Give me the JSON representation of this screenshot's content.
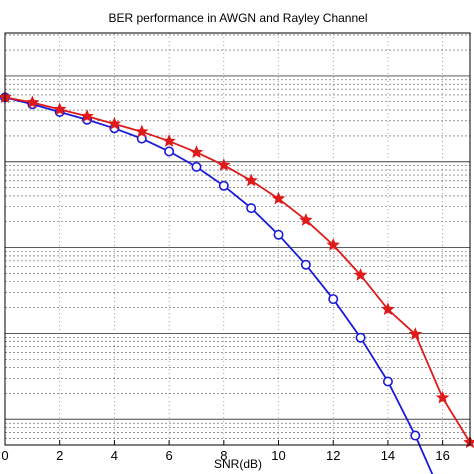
{
  "chart_data": {
    "type": "line",
    "title": "BER performance    in AWGN and Rayley Channel",
    "xlabel": "SNR(dB)",
    "ylabel": "",
    "xlim": [
      0,
      17
    ],
    "xticks": [
      0,
      2,
      4,
      6,
      8,
      10,
      12,
      14,
      16
    ],
    "yscale": "log",
    "ylim_log10": [
      -5.3,
      -0.5
    ],
    "major_decades": [
      -5,
      -4,
      -3,
      -2,
      -1
    ],
    "grid": true,
    "legend": "none",
    "series": [
      {
        "color": "#1a1adb",
        "marker": "circle",
        "x": [
          0,
          1,
          2,
          3,
          4,
          5,
          6,
          7,
          8,
          9,
          10,
          11,
          12,
          13,
          14,
          15,
          16
        ],
        "y_log10": [
          -1.25,
          -1.33,
          -1.42,
          -1.51,
          -1.61,
          -1.73,
          -1.88,
          -2.06,
          -2.28,
          -2.54,
          -2.85,
          -3.2,
          -3.6,
          -4.05,
          -4.56,
          -5.19,
          -5.91
        ]
      },
      {
        "color": "#e01a1a",
        "marker": "star",
        "x": [
          0,
          1,
          2,
          3,
          4,
          5,
          6,
          7,
          8,
          9,
          10,
          11,
          12,
          13,
          14,
          15,
          16,
          17
        ],
        "y_log10": [
          -1.25,
          -1.31,
          -1.39,
          -1.47,
          -1.56,
          -1.65,
          -1.76,
          -1.89,
          -2.04,
          -2.22,
          -2.43,
          -2.68,
          -2.97,
          -3.32,
          -3.72,
          -4.01,
          -4.75,
          -5.27
        ]
      }
    ]
  }
}
